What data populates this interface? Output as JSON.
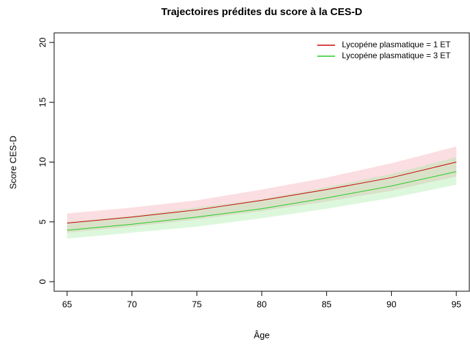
{
  "chart_data": {
    "type": "line",
    "title": "Trajectoires prédites du score à la CES-D",
    "x_label": "Âge",
    "y_label": "Score CES-D",
    "x": [
      65,
      70,
      75,
      80,
      85,
      90,
      95
    ],
    "series": [
      {
        "name": "Lycopéne plasmatique = 1 ET",
        "color": "#cc0000",
        "band_color": "#f4a0a8",
        "values": [
          4.9,
          5.4,
          6.0,
          6.8,
          7.7,
          8.7,
          10.0
        ],
        "lower": [
          4.1,
          4.6,
          5.2,
          5.9,
          6.7,
          7.6,
          8.8
        ],
        "upper": [
          5.7,
          6.2,
          6.8,
          7.7,
          8.7,
          9.9,
          11.3
        ]
      },
      {
        "name": "Lycopéne plasmatique = 3 ET",
        "color": "#22cc22",
        "band_color": "#9de89d",
        "values": [
          4.3,
          4.8,
          5.4,
          6.1,
          7.0,
          8.0,
          9.2
        ],
        "lower": [
          3.6,
          4.1,
          4.6,
          5.3,
          6.1,
          7.0,
          8.1
        ],
        "upper": [
          5.0,
          5.5,
          6.2,
          6.9,
          7.9,
          9.0,
          10.4
        ]
      }
    ],
    "xlim": [
      64,
      96
    ],
    "xticks": [
      65,
      70,
      75,
      80,
      85,
      90,
      95
    ],
    "ylim": [
      -0.8,
      20.8
    ],
    "yticks": [
      0,
      5,
      10,
      15,
      20
    ],
    "legend": "topright"
  }
}
